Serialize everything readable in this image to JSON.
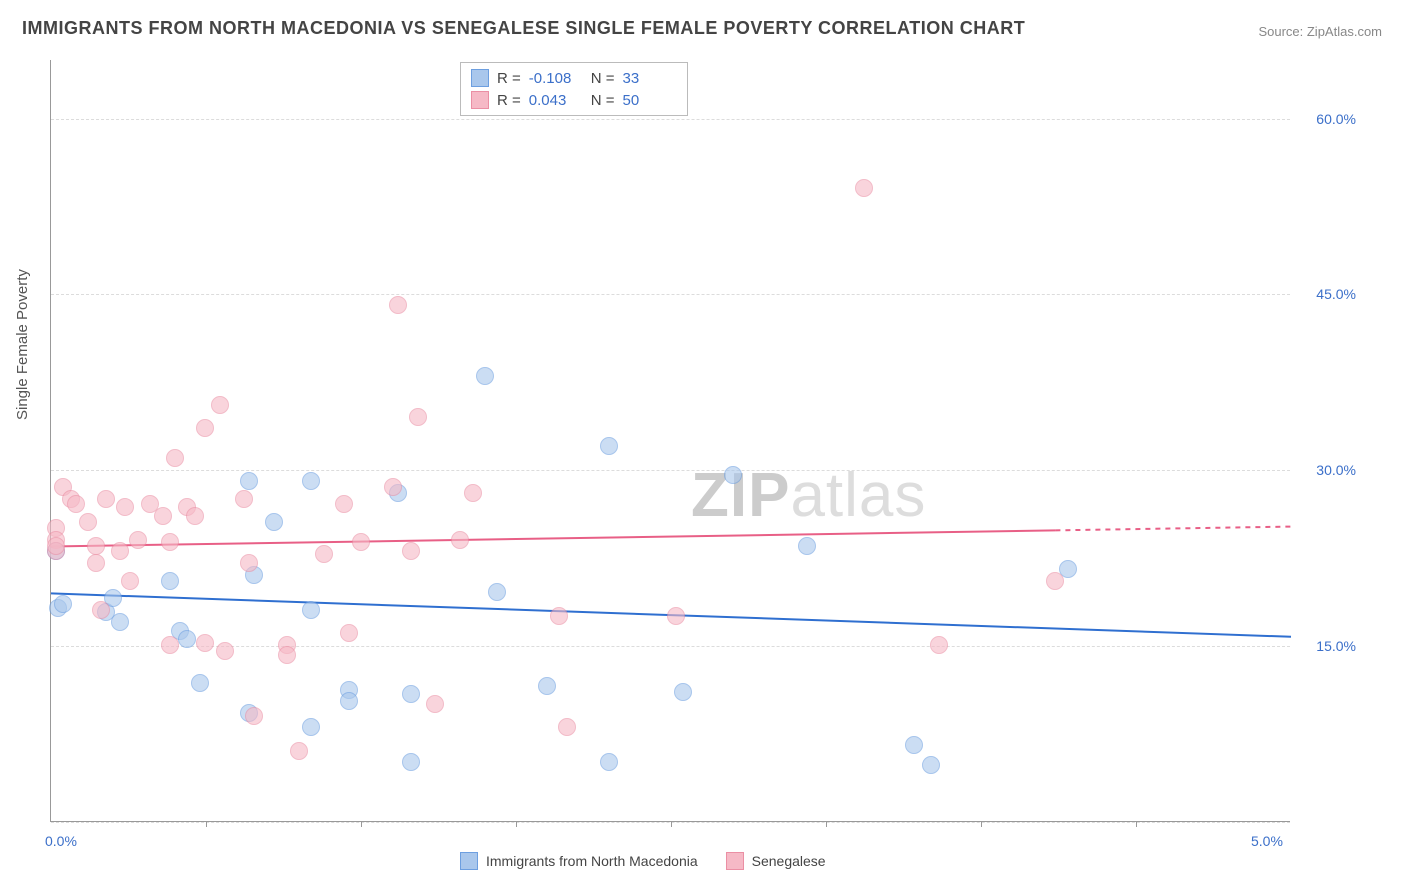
{
  "title": "IMMIGRANTS FROM NORTH MACEDONIA VS SENEGALESE SINGLE FEMALE POVERTY CORRELATION CHART",
  "source": "Source: ZipAtlas.com",
  "watermark_bold": "ZIP",
  "watermark_light": "atlas",
  "chart": {
    "type": "scatter",
    "ylabel": "Single Female Poverty",
    "colors": {
      "series1_fill": "#a9c7ec",
      "series1_stroke": "#6d9fe0",
      "series2_fill": "#f6b9c6",
      "series2_stroke": "#eb8fa4",
      "trend1": "#2f6fd0",
      "trend2": "#e85f86",
      "grid": "#dcdcdc",
      "axis": "#999999",
      "tick_text": "#3b6fc9",
      "background": "#ffffff"
    },
    "marker_radius": 9,
    "marker_opacity": 0.6,
    "x_axis": {
      "min": 0.0,
      "max": 5.0,
      "ticks": [
        0.0,
        5.0
      ],
      "tick_marks": [
        0.625,
        1.25,
        1.875,
        2.5,
        3.125,
        3.75,
        4.375
      ],
      "label_format": "percent1"
    },
    "y_axis": {
      "min": 0.0,
      "max": 65.0,
      "gridlines": [
        0.0,
        15.0,
        30.0,
        45.0,
        60.0
      ],
      "tick_labels": [
        15.0,
        30.0,
        45.0,
        60.0
      ],
      "label_format": "percent1"
    },
    "series": [
      {
        "name": "Immigrants from North Macedonia",
        "key": "series1",
        "R": "-0.108",
        "N": "33",
        "trend": {
          "y_at_xmin": 19.5,
          "y_at_xmax": 15.8,
          "x_solid_end": 5.0
        },
        "points": [
          {
            "x": 0.02,
            "y": 23.0
          },
          {
            "x": 0.03,
            "y": 18.2
          },
          {
            "x": 0.05,
            "y": 18.5
          },
          {
            "x": 0.22,
            "y": 17.8
          },
          {
            "x": 0.25,
            "y": 19.0
          },
          {
            "x": 0.28,
            "y": 17.0
          },
          {
            "x": 0.48,
            "y": 20.5
          },
          {
            "x": 0.52,
            "y": 16.2
          },
          {
            "x": 0.55,
            "y": 15.5
          },
          {
            "x": 0.6,
            "y": 11.8
          },
          {
            "x": 0.8,
            "y": 29.0
          },
          {
            "x": 0.82,
            "y": 21.0
          },
          {
            "x": 0.8,
            "y": 9.2
          },
          {
            "x": 0.9,
            "y": 25.5
          },
          {
            "x": 1.05,
            "y": 29.0
          },
          {
            "x": 1.05,
            "y": 18.0
          },
          {
            "x": 1.05,
            "y": 8.0
          },
          {
            "x": 1.2,
            "y": 11.2
          },
          {
            "x": 1.2,
            "y": 10.2
          },
          {
            "x": 1.4,
            "y": 28.0
          },
          {
            "x": 1.45,
            "y": 10.8
          },
          {
            "x": 1.45,
            "y": 5.0
          },
          {
            "x": 1.75,
            "y": 38.0
          },
          {
            "x": 1.8,
            "y": 19.5
          },
          {
            "x": 2.0,
            "y": 11.5
          },
          {
            "x": 2.25,
            "y": 32.0
          },
          {
            "x": 2.25,
            "y": 5.0
          },
          {
            "x": 2.55,
            "y": 11.0
          },
          {
            "x": 2.75,
            "y": 29.5
          },
          {
            "x": 3.05,
            "y": 23.5
          },
          {
            "x": 3.48,
            "y": 6.5
          },
          {
            "x": 3.55,
            "y": 4.8
          },
          {
            "x": 4.1,
            "y": 21.5
          }
        ]
      },
      {
        "name": "Senegalese",
        "key": "series2",
        "R": "0.043",
        "N": "50",
        "trend": {
          "y_at_xmin": 23.5,
          "y_at_xmax": 25.2,
          "x_solid_end": 4.05
        },
        "points": [
          {
            "x": 0.02,
            "y": 25.0
          },
          {
            "x": 0.02,
            "y": 24.0
          },
          {
            "x": 0.02,
            "y": 23.0
          },
          {
            "x": 0.02,
            "y": 23.5
          },
          {
            "x": 0.05,
            "y": 28.5
          },
          {
            "x": 0.08,
            "y": 27.5
          },
          {
            "x": 0.1,
            "y": 27.0
          },
          {
            "x": 0.15,
            "y": 25.5
          },
          {
            "x": 0.18,
            "y": 23.5
          },
          {
            "x": 0.18,
            "y": 22.0
          },
          {
            "x": 0.2,
            "y": 18.0
          },
          {
            "x": 0.22,
            "y": 27.5
          },
          {
            "x": 0.28,
            "y": 23.0
          },
          {
            "x": 0.3,
            "y": 26.8
          },
          {
            "x": 0.32,
            "y": 20.5
          },
          {
            "x": 0.35,
            "y": 24.0
          },
          {
            "x": 0.4,
            "y": 27.0
          },
          {
            "x": 0.45,
            "y": 26.0
          },
          {
            "x": 0.48,
            "y": 23.8
          },
          {
            "x": 0.48,
            "y": 15.0
          },
          {
            "x": 0.5,
            "y": 31.0
          },
          {
            "x": 0.55,
            "y": 26.8
          },
          {
            "x": 0.58,
            "y": 26.0
          },
          {
            "x": 0.62,
            "y": 33.5
          },
          {
            "x": 0.62,
            "y": 15.2
          },
          {
            "x": 0.68,
            "y": 35.5
          },
          {
            "x": 0.7,
            "y": 14.5
          },
          {
            "x": 0.78,
            "y": 27.5
          },
          {
            "x": 0.8,
            "y": 22.0
          },
          {
            "x": 0.82,
            "y": 9.0
          },
          {
            "x": 0.95,
            "y": 15.0
          },
          {
            "x": 0.95,
            "y": 14.2
          },
          {
            "x": 1.0,
            "y": 6.0
          },
          {
            "x": 1.1,
            "y": 22.8
          },
          {
            "x": 1.18,
            "y": 27.0
          },
          {
            "x": 1.2,
            "y": 16.0
          },
          {
            "x": 1.25,
            "y": 23.8
          },
          {
            "x": 1.38,
            "y": 28.5
          },
          {
            "x": 1.4,
            "y": 44.0
          },
          {
            "x": 1.45,
            "y": 23.0
          },
          {
            "x": 1.48,
            "y": 34.5
          },
          {
            "x": 1.55,
            "y": 10.0
          },
          {
            "x": 1.65,
            "y": 24.0
          },
          {
            "x": 1.7,
            "y": 28.0
          },
          {
            "x": 2.05,
            "y": 17.5
          },
          {
            "x": 2.08,
            "y": 8.0
          },
          {
            "x": 2.52,
            "y": 17.5
          },
          {
            "x": 3.28,
            "y": 54.0
          },
          {
            "x": 3.58,
            "y": 15.0
          },
          {
            "x": 4.05,
            "y": 20.5
          }
        ]
      }
    ]
  }
}
